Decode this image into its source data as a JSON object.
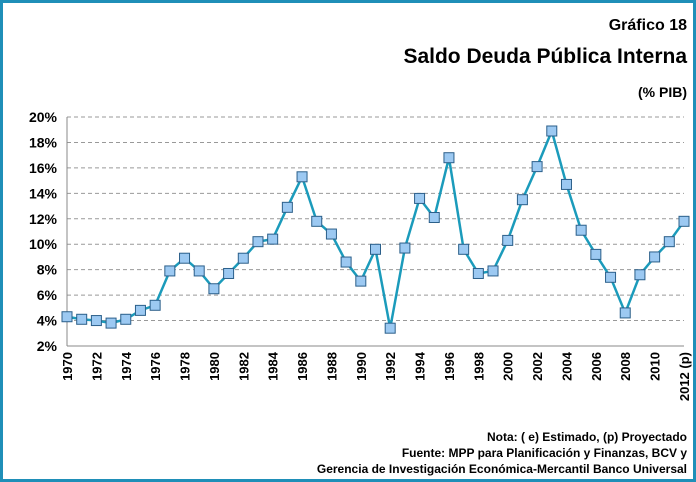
{
  "chart_data": {
    "type": "line",
    "title": "Gráfico 18",
    "subtitle": "Saldo Deuda Pública Interna",
    "unit_label": "(% PIB)",
    "categories": [
      "1970",
      null,
      "1972",
      null,
      "1974",
      null,
      "1976",
      null,
      "1978",
      null,
      "1980",
      null,
      "1982",
      null,
      "1984",
      null,
      "1986",
      null,
      "1988",
      null,
      "1990",
      null,
      "1992",
      null,
      "1994",
      null,
      "1996",
      null,
      "1998",
      null,
      "2000",
      null,
      "2002",
      null,
      "2004",
      null,
      "2006",
      null,
      "2008",
      null,
      "2010",
      null,
      "2012 (p)"
    ],
    "series": [
      {
        "name": "Saldo Deuda Pública Interna",
        "color": "#1b9bbb",
        "marker_color": "#9cc9f2",
        "values": [
          4.3,
          4.1,
          4.0,
          3.8,
          4.1,
          4.8,
          5.2,
          7.9,
          8.9,
          7.9,
          6.5,
          7.7,
          8.9,
          10.2,
          10.4,
          12.9,
          15.3,
          11.8,
          10.8,
          8.6,
          7.1,
          9.6,
          3.4,
          9.7,
          13.6,
          12.1,
          16.8,
          9.6,
          7.7,
          7.9,
          10.3,
          13.5,
          16.1,
          18.9,
          14.7,
          11.1,
          9.2,
          7.4,
          4.6,
          7.6,
          9.0,
          10.2,
          11.8
        ]
      }
    ],
    "ylim": [
      2,
      20
    ],
    "yticks": [
      {
        "value": 2,
        "label": "2%"
      },
      {
        "value": 4,
        "label": "4%"
      },
      {
        "value": 6,
        "label": "6%"
      },
      {
        "value": 8,
        "label": "8%"
      },
      {
        "value": 10,
        "label": "10%"
      },
      {
        "value": 12,
        "label": "12%"
      },
      {
        "value": 14,
        "label": "14%"
      },
      {
        "value": 16,
        "label": "16%"
      },
      {
        "value": 18,
        "label": "18%"
      },
      {
        "value": 20,
        "label": "20%"
      }
    ],
    "grid": true,
    "notes": [
      "Nota: ( e) Estimado, (p) Proyectado",
      "Fuente: MPP para Planificación y Finanzas, BCV y",
      "Gerencia de Investigación Económica-Mercantil Banco Universal"
    ]
  }
}
